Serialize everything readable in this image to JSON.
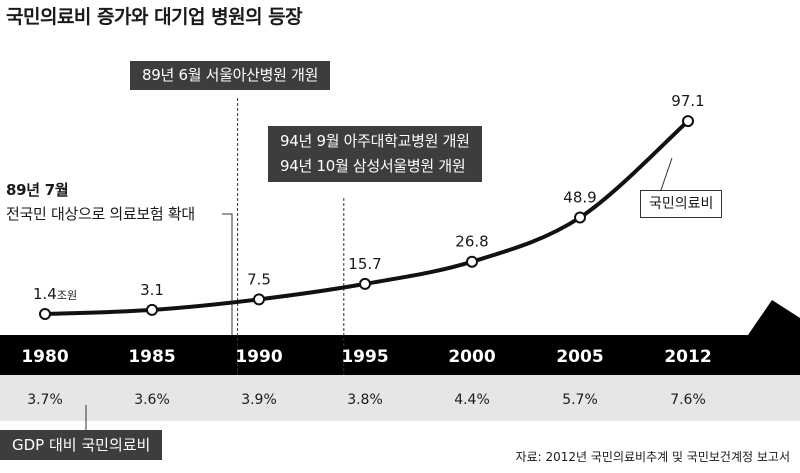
{
  "title": "국민의료비 증가와 대기업 병원의 등장",
  "annotations": {
    "asan": "89년 6월 서울아산병원 개원",
    "ajou": "94년 9월 아주대학교병원 개원",
    "samsung": "94년 10월 삼성서울병원 개원",
    "insurance_line1": "89년 7월",
    "insurance_line2": "전국민 대상으로 의료보험 확대"
  },
  "series_label": "국민의료비",
  "value_unit": "조원",
  "gdp_legend": "GDP 대비 국민의료비",
  "source": "자료: 2012년 국민의료비추계 및 국민보건계정 보고서",
  "colors": {
    "line": "#111111",
    "timeline_band": "#000000",
    "gdp_band": "#e6e6e6",
    "annotation_box": "#3d3d3d"
  },
  "chart_data": {
    "type": "line",
    "x": [
      "1980",
      "1985",
      "1990",
      "1995",
      "2000",
      "2005",
      "2012"
    ],
    "series": [
      {
        "name": "국민의료비",
        "values": [
          1.4,
          3.1,
          7.5,
          15.7,
          26.8,
          48.9,
          97.1
        ]
      }
    ],
    "value_labels": [
      "1.4",
      "3.1",
      "7.5",
      "15.7",
      "26.8",
      "48.9",
      "97.1"
    ],
    "gdp_share_labels": [
      "3.7%",
      "3.6%",
      "3.9%",
      "3.8%",
      "4.4%",
      "5.7%",
      "7.6%"
    ],
    "events": [
      {
        "year": "1989"
      },
      {
        "year": "1994"
      }
    ],
    "grid": false
  }
}
